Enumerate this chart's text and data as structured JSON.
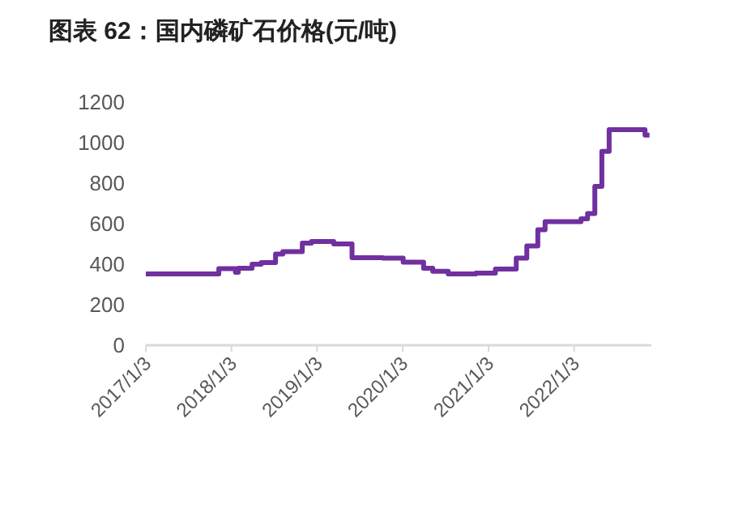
{
  "chart_data": {
    "type": "step",
    "title": "图表 62：国内磷矿石价格(元/吨)",
    "x": [
      "2017-01-03",
      "2017-10-20",
      "2017-11-10",
      "2018-01-20",
      "2018-02-01",
      "2018-02-20",
      "2018-04-01",
      "2018-05-10",
      "2018-07-10",
      "2018-08-10",
      "2018-11-01",
      "2018-12-10",
      "2019-03-15",
      "2019-06-01",
      "2019-10-10",
      "2020-01-05",
      "2020-04-01",
      "2020-05-10",
      "2020-07-15",
      "2020-11-10",
      "2021-02-01",
      "2021-05-01",
      "2021-06-15",
      "2021-08-01",
      "2021-09-01",
      "2022-02-01",
      "2022-03-01",
      "2022-04-01",
      "2022-05-01",
      "2022-06-01",
      "2022-09-15",
      "2022-11-01",
      "2022-11-20"
    ],
    "series": [
      {
        "color": "#7030a0",
        "values": [
          352,
          352,
          378,
          360,
          380,
          380,
          400,
          408,
          450,
          462,
          504,
          512,
          500,
          432,
          430,
          410,
          380,
          365,
          352,
          356,
          376,
          430,
          490,
          570,
          610,
          624,
          650,
          784,
          957,
          1064,
          1064,
          1037,
          1037
        ]
      }
    ],
    "xlim": [
      "2017-01-03",
      "2022-11-28"
    ],
    "xticks": [
      {
        "value": "2017-01-03",
        "label": "2017/1/3"
      },
      {
        "value": "2018-01-03",
        "label": "2018/1/3"
      },
      {
        "value": "2019-01-03",
        "label": "2019/1/3"
      },
      {
        "value": "2020-01-03",
        "label": "2020/1/3"
      },
      {
        "value": "2021-01-03",
        "label": "2021/1/3"
      },
      {
        "value": "2022-01-03",
        "label": "2022/1/3"
      }
    ],
    "ylim": [
      0,
      1200
    ],
    "yticks": [
      0,
      200,
      400,
      600,
      800,
      1000,
      1200
    ],
    "grid": false
  }
}
